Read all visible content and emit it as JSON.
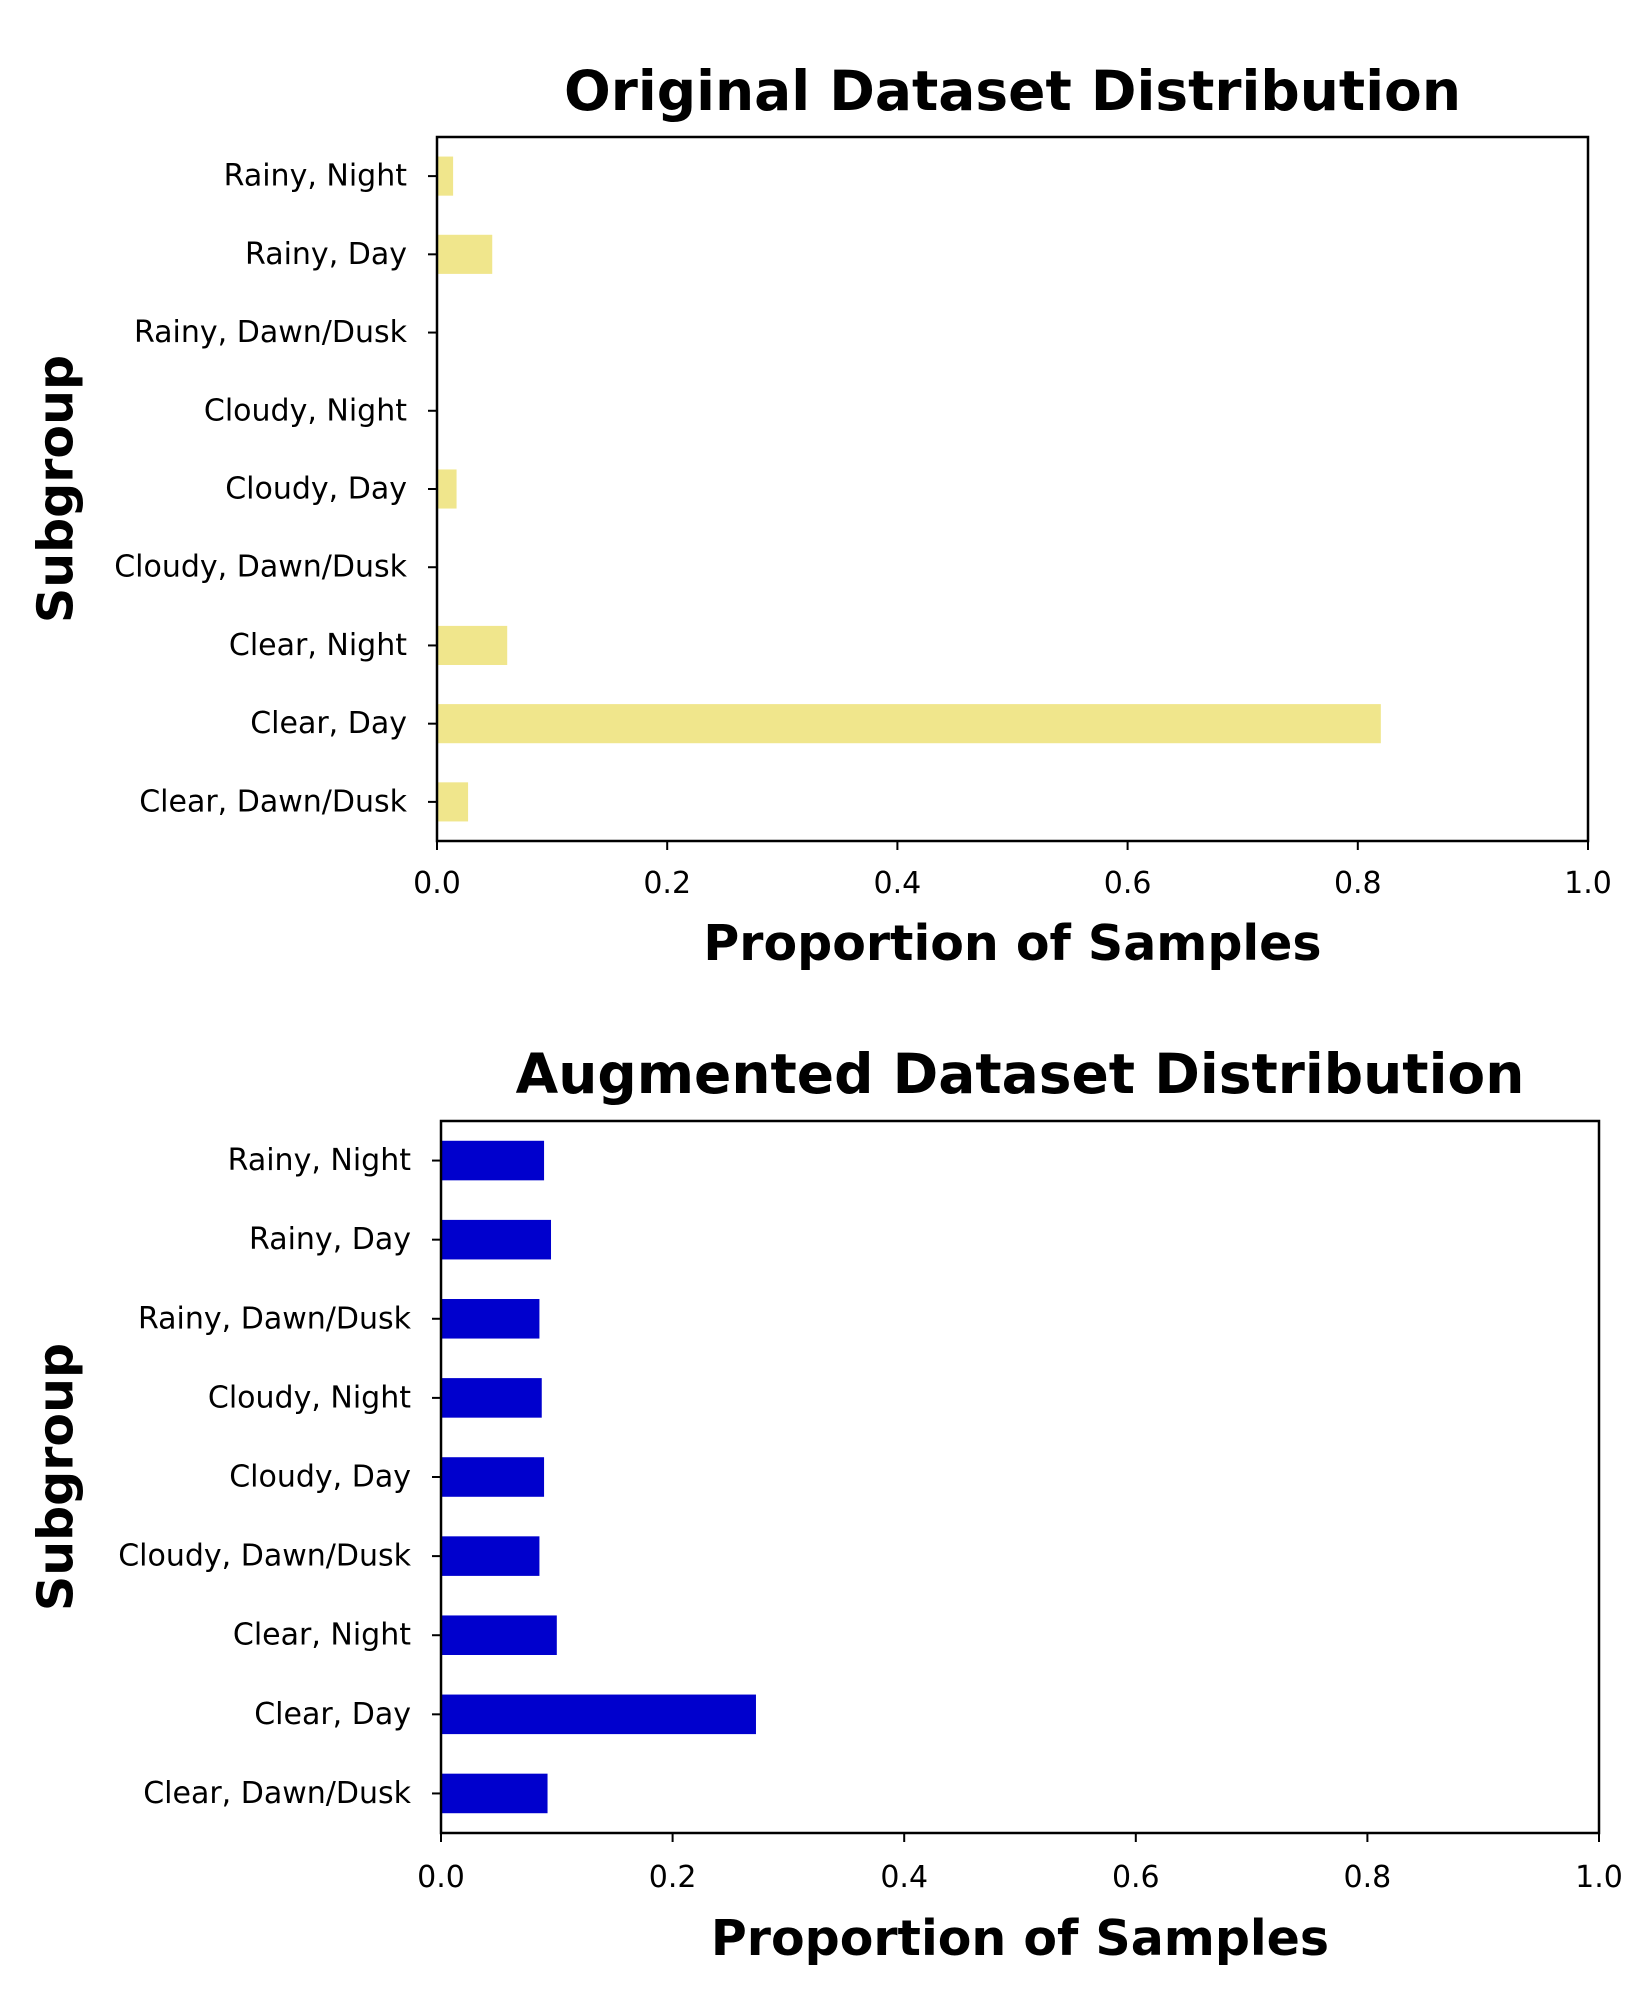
{
  "chart_data": [
    {
      "type": "bar",
      "orientation": "horizontal",
      "title": "Original Dataset Distribution",
      "xlabel": "Proportion of Samples",
      "ylabel": "Subgroup",
      "categories": [
        "Clear, Dawn/Dusk",
        "Clear, Day",
        "Clear, Night",
        "Cloudy, Dawn/Dusk",
        "Cloudy, Day",
        "Cloudy, Night",
        "Rainy, Dawn/Dusk",
        "Rainy, Day",
        "Rainy, Night"
      ],
      "values": [
        0.027,
        0.82,
        0.061,
        0.0,
        0.017,
        0.0,
        0.0,
        0.048,
        0.014
      ],
      "xlim": [
        0,
        1.0
      ],
      "xticks": [
        "0.0",
        "0.2",
        "0.4",
        "0.6",
        "0.8",
        "1.0"
      ],
      "bar_color": "#F0E68C",
      "grid": false
    },
    {
      "type": "bar",
      "orientation": "horizontal",
      "title": "Augmented Dataset Distribution",
      "xlabel": "Proportion of Samples",
      "ylabel": "Subgroup",
      "categories": [
        "Clear, Dawn/Dusk",
        "Clear, Day",
        "Clear, Night",
        "Cloudy, Dawn/Dusk",
        "Cloudy, Day",
        "Cloudy, Night",
        "Rainy, Dawn/Dusk",
        "Rainy, Day",
        "Rainy, Night"
      ],
      "values": [
        0.092,
        0.272,
        0.1,
        0.085,
        0.089,
        0.087,
        0.085,
        0.095,
        0.089
      ],
      "xlim": [
        0,
        1.0
      ],
      "xticks": [
        "0.0",
        "0.2",
        "0.4",
        "0.6",
        "0.8",
        "1.0"
      ],
      "bar_color": "#0000CD",
      "grid": false
    }
  ]
}
